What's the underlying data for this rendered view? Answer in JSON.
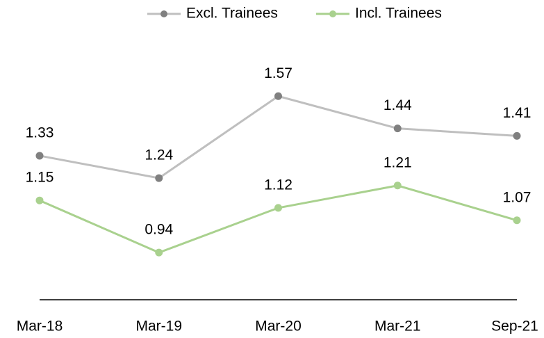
{
  "chart_data": {
    "type": "line",
    "categories": [
      "Mar-18",
      "Mar-19",
      "Mar-20",
      "Mar-21",
      "Sep-21"
    ],
    "series": [
      {
        "name": "Excl. Trainees",
        "color": "#bfbfbf",
        "marker_color": "#808080",
        "values": [
          1.33,
          1.24,
          1.57,
          1.44,
          1.41
        ]
      },
      {
        "name": "Incl. Trainees",
        "color": "#a9d18e",
        "marker_color": "#a9d18e",
        "values": [
          1.15,
          0.94,
          1.12,
          1.21,
          1.07
        ]
      }
    ],
    "ylim": [
      0.75,
      1.75
    ],
    "legend": "top",
    "grid": false
  }
}
